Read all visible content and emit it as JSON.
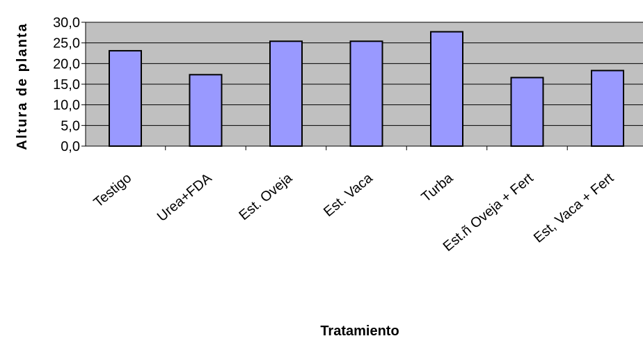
{
  "chart_data": {
    "type": "bar",
    "title": "",
    "xlabel": "Tratamiento",
    "ylabel": "Altura de planta",
    "categories": [
      "Testigo",
      "Urea+FDA",
      "Est. Oveja",
      "Est. Vaca",
      "Turba",
      "Est.ñ Oveja + Fert",
      "Est, Vaca + Fert"
    ],
    "series": [
      {
        "values": [
          23.1,
          17.3,
          25.4,
          25.4,
          27.7,
          16.6,
          18.3
        ]
      }
    ],
    "ylim": [
      0,
      30
    ],
    "yticks": [
      "0,0",
      "5,0",
      "10,0",
      "15,0",
      "20,0",
      "25,0",
      "30,0"
    ],
    "grid": true,
    "legend": "none",
    "colors": {
      "bar_fill": "#9999ff",
      "plot_background": "#c0c0c0",
      "gridline": "#000000"
    }
  }
}
